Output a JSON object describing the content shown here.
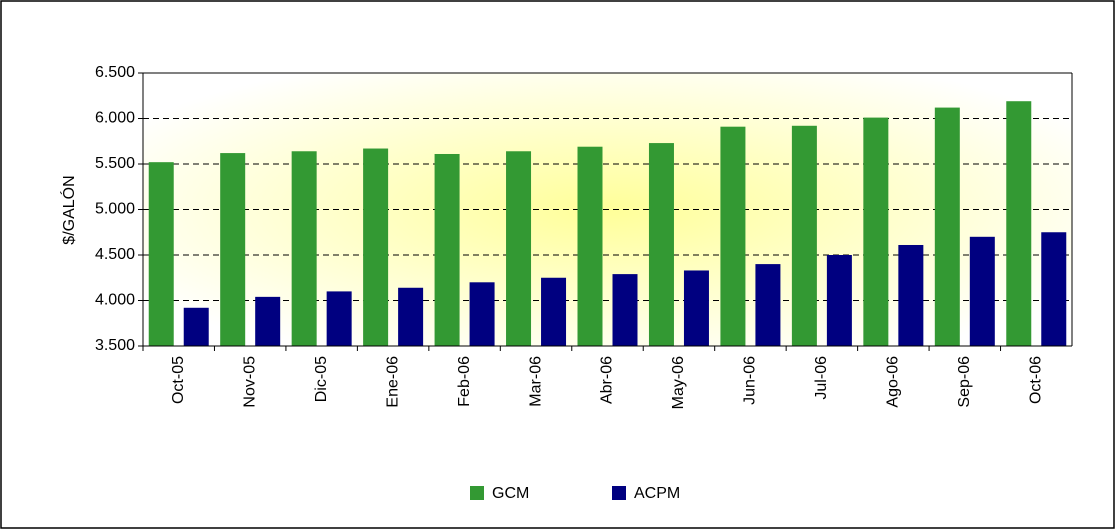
{
  "chart_data": {
    "type": "bar",
    "y_label": "$/GALÓN",
    "categories": [
      "Oct-05",
      "Nov-05",
      "Dic-05",
      "Ene-06",
      "Feb-06",
      "Mar-06",
      "Abr-06",
      "May-06",
      "Jun-06",
      "Jul-06",
      "Ago-06",
      "Sep-06",
      "Oct-06"
    ],
    "series": [
      {
        "name": "GCM",
        "color": "#339933",
        "values": [
          5520,
          5620,
          5640,
          5670,
          5610,
          5640,
          5690,
          5730,
          5910,
          5920,
          6010,
          6120,
          6190
        ]
      },
      {
        "name": "ACPM",
        "color": "#000080",
        "values": [
          3920,
          4040,
          4100,
          4140,
          4200,
          4250,
          4290,
          4330,
          4400,
          4500,
          4610,
          4700,
          4750
        ]
      }
    ],
    "ylim": [
      3500,
      6500
    ],
    "yticks": [
      {
        "value": 3500,
        "label": "3.500"
      },
      {
        "value": 4000,
        "label": "4.000"
      },
      {
        "value": 4500,
        "label": "4.500"
      },
      {
        "value": 5000,
        "label": "5.000"
      },
      {
        "value": 5500,
        "label": "5.500"
      },
      {
        "value": 6000,
        "label": "6.000"
      },
      {
        "value": 6500,
        "label": "6.500"
      }
    ],
    "grid": true
  }
}
